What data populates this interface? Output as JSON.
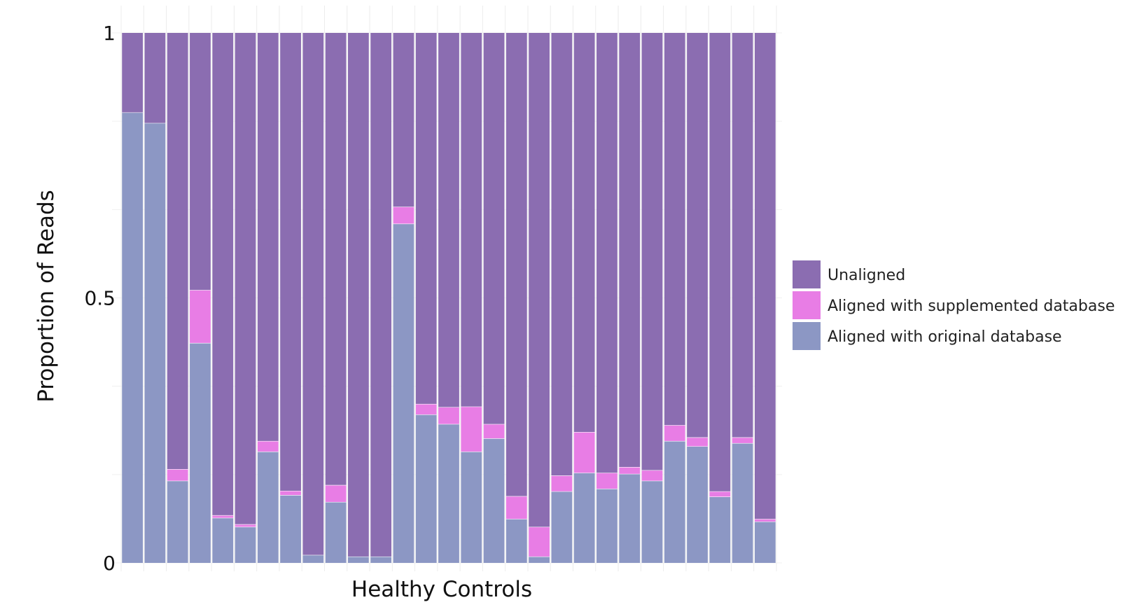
{
  "chart_data": {
    "type": "bar",
    "stacked": true,
    "xlabel": "Healthy Controls",
    "ylabel": "Proportion of Reads",
    "ylim": [
      0,
      1
    ],
    "y_ticks": [
      "0",
      "0.5",
      "1"
    ],
    "y_tick_values": [
      0,
      0.5,
      1
    ],
    "grid": true,
    "legend_position": "right",
    "categories": [
      "",
      "",
      "",
      "",
      "",
      "",
      "",
      "",
      "",
      "",
      "",
      "",
      "",
      "",
      "",
      "",
      "",
      "",
      "",
      "",
      "",
      "",
      "",
      "",
      "",
      "",
      "",
      "",
      ""
    ],
    "series": [
      {
        "name": "Aligned with original database",
        "color": "#8C97C4",
        "values": [
          0.85,
          0.83,
          0.155,
          0.415,
          0.085,
          0.068,
          0.21,
          0.128,
          0.015,
          0.115,
          0.012,
          0.012,
          0.64,
          0.28,
          0.262,
          0.21,
          0.235,
          0.083,
          0.012,
          0.135,
          0.17,
          0.14,
          0.168,
          0.155,
          0.23,
          0.22,
          0.125,
          0.226,
          0.078
        ]
      },
      {
        "name": "Aligned with supplemented database",
        "color": "#E87DE5",
        "values": [
          0.0,
          0.0,
          0.022,
          0.1,
          0.005,
          0.005,
          0.02,
          0.008,
          0.0,
          0.032,
          0.0,
          0.0,
          0.032,
          0.02,
          0.032,
          0.085,
          0.027,
          0.043,
          0.056,
          0.03,
          0.077,
          0.03,
          0.013,
          0.02,
          0.03,
          0.017,
          0.01,
          0.011,
          0.005
        ]
      },
      {
        "name": "Unaligned",
        "color": "#8B6DB1",
        "values": [
          0.15,
          0.17,
          0.823,
          0.485,
          0.91,
          0.927,
          0.77,
          0.864,
          0.985,
          0.853,
          0.988,
          0.988,
          0.328,
          0.7,
          0.706,
          0.705,
          0.738,
          0.874,
          0.932,
          0.835,
          0.753,
          0.83,
          0.819,
          0.825,
          0.74,
          0.763,
          0.865,
          0.763,
          0.917
        ]
      }
    ],
    "legend_order": [
      "Unaligned",
      "Aligned with supplemented database",
      "Aligned with original database"
    ]
  }
}
